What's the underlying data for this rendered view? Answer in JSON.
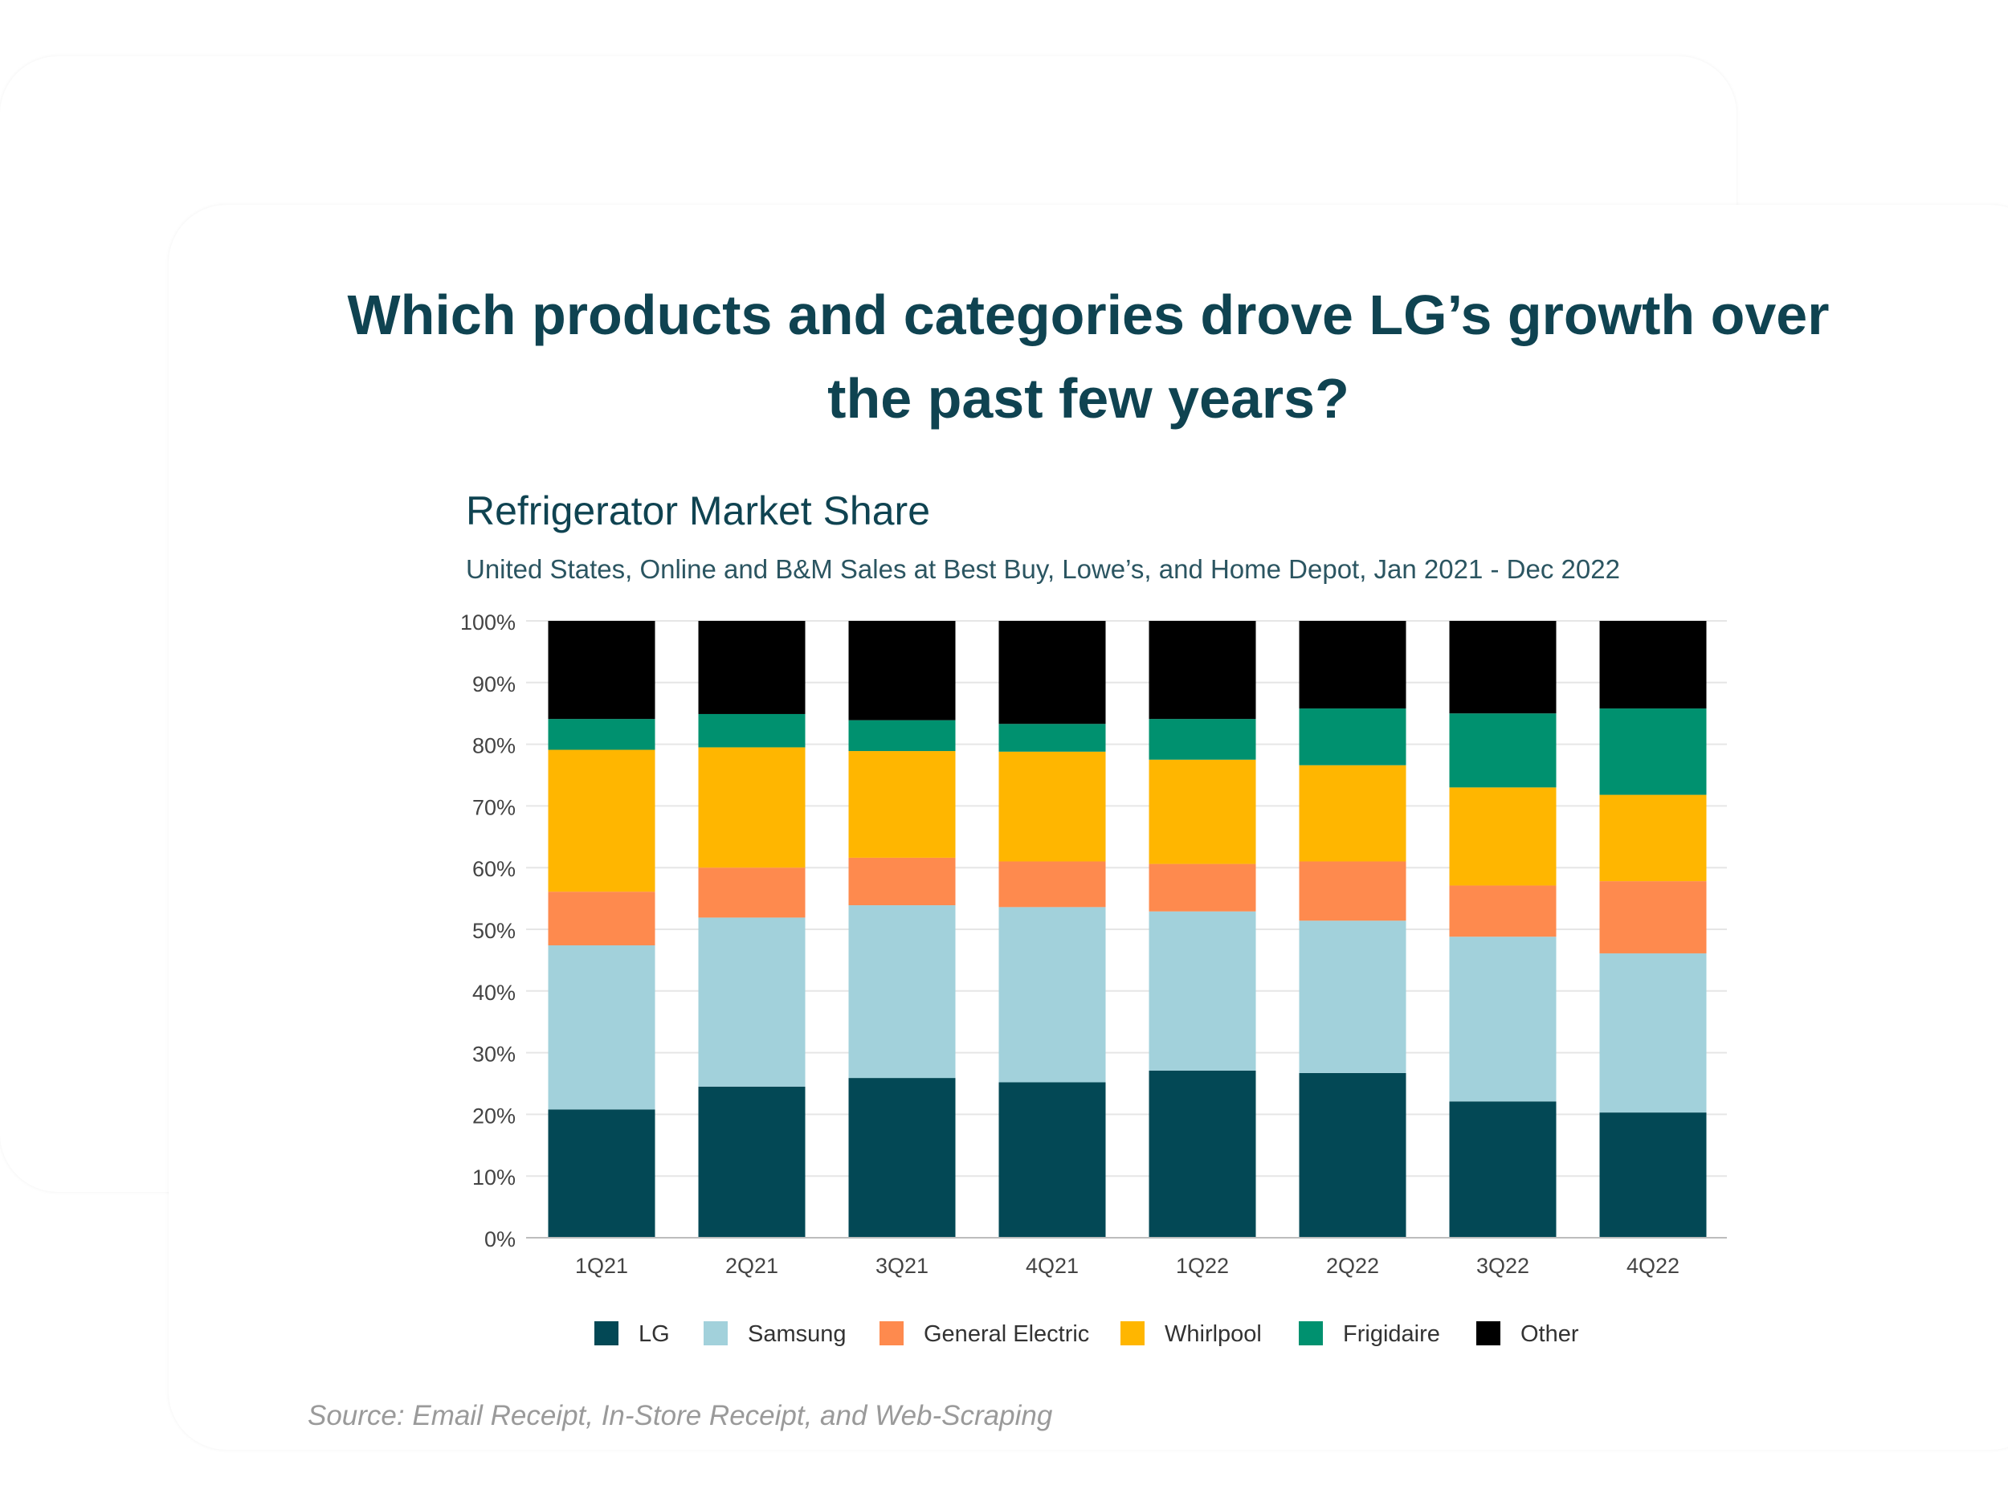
{
  "headline": "Which products and categories drove LG’s growth over the past few years?",
  "source": "Source: Email Receipt, In-Store Receipt, and Web-Scraping",
  "colors": {
    "lg": "#034855",
    "samsung": "#a2d1db",
    "general_electric": "#fe8a4e",
    "whirlpool": "#ffb600",
    "frigidaire": "#00916f",
    "other": "#000000"
  },
  "chart_data": {
    "type": "bar",
    "stacked": true,
    "title": "Refrigerator Market Share",
    "subtitle": "United States, Online and B&M Sales at Best Buy, Lowe’s, and Home Depot, Jan 2021 - Dec 2022",
    "categories": [
      "1Q21",
      "2Q21",
      "3Q21",
      "4Q21",
      "1Q22",
      "2Q22",
      "3Q22",
      "4Q22"
    ],
    "ylim": [
      0,
      100
    ],
    "yticks": [
      "0%",
      "10%",
      "20%",
      "30%",
      "40%",
      "50%",
      "60%",
      "70%",
      "80%",
      "90%",
      "100%"
    ],
    "grid": true,
    "legend_position": "bottom",
    "series": [
      {
        "name": "LG",
        "values": [
          20.8,
          24.5,
          25.9,
          25.2,
          27.1,
          26.7,
          22.1,
          20.3
        ]
      },
      {
        "name": "Samsung",
        "values": [
          26.6,
          27.4,
          28.0,
          28.4,
          25.8,
          24.7,
          26.7,
          25.8
        ]
      },
      {
        "name": "General Electric",
        "values": [
          8.7,
          8.1,
          7.7,
          7.4,
          7.7,
          9.6,
          8.3,
          11.7
        ]
      },
      {
        "name": "Whirlpool",
        "values": [
          23.0,
          19.5,
          17.3,
          17.8,
          16.9,
          15.6,
          15.9,
          14.0
        ]
      },
      {
        "name": "Frigidaire",
        "values": [
          5.0,
          5.4,
          5.0,
          4.5,
          6.6,
          9.2,
          12.0,
          14.0
        ]
      },
      {
        "name": "Other",
        "values": [
          15.9,
          15.1,
          16.1,
          16.7,
          15.9,
          14.2,
          15.0,
          14.2
        ]
      }
    ]
  }
}
